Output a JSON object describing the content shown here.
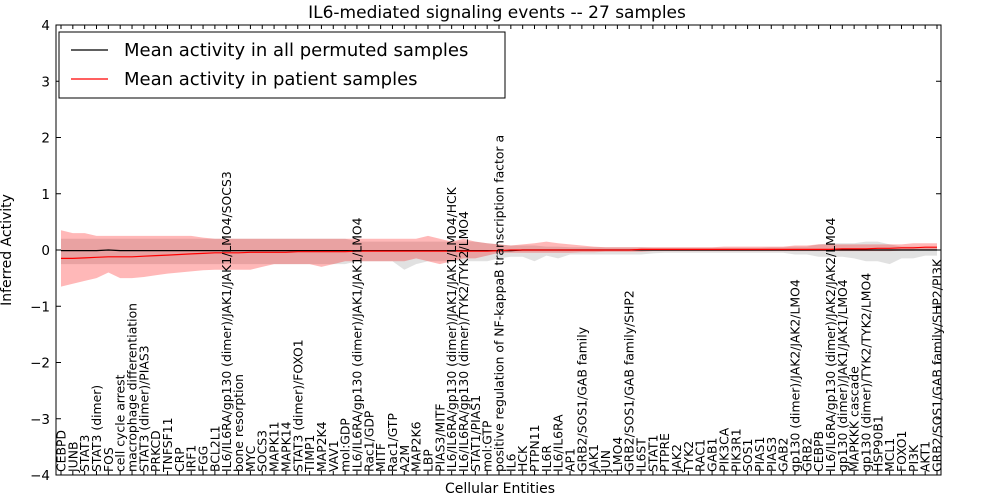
{
  "chart_data": {
    "type": "line",
    "title": "IL6-mediated signaling events -- 27 samples",
    "xlabel": "Cellular Entities",
    "ylabel": "Inferred Activity",
    "ylim": [
      -4,
      4
    ],
    "yticks": [
      -4,
      -3,
      -2,
      -1,
      0,
      1,
      2,
      3,
      4
    ],
    "ytick_labels": [
      "−4",
      "−3",
      "−2",
      "−1",
      "0",
      "1",
      "2",
      "3",
      "4"
    ],
    "legend_position": "top-left",
    "categories": [
      "CEBPD",
      "JUNB",
      "STAT3",
      "STAT3 (dimer)",
      "FOS",
      "cell cycle arrest",
      "macrophage differentiation",
      "STAT3 (dimer)/PIAS3",
      "PRKCD",
      "TNFSF11",
      "CRP",
      "IRF1",
      "FGG",
      "BCL2L1",
      "IL6/IL6RA/gp130 (dimer)/JAK1/JAK1/LMO4/SOCS3",
      "bone resorption",
      "MYC",
      "SOCS3",
      "MAPK11",
      "MAPK14",
      "STAT3 (dimer)/FOXO1",
      "TIMP1",
      "MAP2K4",
      "VAV1",
      "mol:GDP",
      "IL6/IL6RA/gp130 (dimer)/JAK1/JAK1/LMO4",
      "Rac1/GDP",
      "MITF",
      "Rac1/GTP",
      "A2M",
      "MAP2K6",
      "LBP",
      "PIAS3/MITF",
      "IL6/IL6RA/gp130 (dimer)/JAK1/JAK1/LMO4/HCK",
      "IL6/IL6RA/gp130 (dimer)/TYK2/TYK2/LMO4",
      "STAT1/PIAS1",
      "mol:GTP",
      "positive regulation of NF-kappaB transcription factor a",
      "IL6",
      "HCK",
      "PTPN11",
      "IL6R",
      "IL6/IL6RA",
      "AP1",
      "GRB2/SOS1/GAB family",
      "JAK1",
      "JUN",
      "LMO4",
      "GRB2/SOS1/GAB family/SHP2",
      "IL6ST",
      "STAT1",
      "PTPRE",
      "JAK2",
      "TYK2",
      "RAC1",
      "GAB1",
      "PIK3CA",
      "PIK3R1",
      "SOS1",
      "PIAS1",
      "PIAS3",
      "GAB2",
      "gp130 (dimer)/JAK2/JAK2/LMO4",
      "GRB2",
      "CEBPB",
      "IL6/IL6RA/gp130 (dimer)/JAK2/JAK2/LMO4",
      "gp130 (dimer)/JAK1/JAK1/LMO4",
      "MAPKKK cascade",
      "gp130 (dimer)/TYK2/TYK2/LMO4",
      "HSP90B1",
      "MCL1",
      "FOXO1",
      "PI3K",
      "AKT1",
      "GRB2/SOS1/GAB family/SHP2/PI3K"
    ],
    "series": [
      {
        "name": "Mean activity in all permuted samples",
        "color": "#000000",
        "band_color": "#c8c8c8",
        "values": [
          -0.01,
          -0.01,
          -0.01,
          -0.01,
          0.0,
          -0.01,
          -0.01,
          -0.01,
          -0.01,
          -0.01,
          -0.01,
          -0.01,
          -0.01,
          -0.01,
          -0.01,
          -0.01,
          -0.01,
          -0.01,
          -0.01,
          -0.01,
          -0.01,
          -0.01,
          -0.01,
          -0.01,
          -0.01,
          -0.01,
          -0.01,
          -0.01,
          -0.01,
          -0.01,
          -0.01,
          -0.01,
          -0.01,
          -0.01,
          -0.01,
          -0.01,
          -0.01,
          -0.01,
          -0.01,
          0.0,
          0.0,
          0.0,
          0.0,
          0.0,
          0.0,
          0.0,
          0.0,
          0.0,
          0.0,
          0.0,
          0.0,
          0.0,
          0.0,
          0.0,
          0.0,
          0.0,
          0.0,
          0.0,
          0.0,
          0.0,
          0.0,
          0.0,
          0.0,
          0.0,
          0.0,
          0.0,
          0.0,
          0.0,
          0.0,
          0.0,
          0.0,
          0.0,
          0.0,
          0.0,
          0.0
        ],
        "lower": [
          -0.25,
          -0.25,
          -0.25,
          -0.25,
          -0.25,
          -0.25,
          -0.25,
          -0.25,
          -0.25,
          -0.25,
          -0.25,
          -0.25,
          -0.25,
          -0.25,
          -0.25,
          -0.25,
          -0.25,
          -0.25,
          -0.25,
          -0.25,
          -0.25,
          -0.25,
          -0.25,
          -0.25,
          -0.25,
          -0.2,
          -0.2,
          -0.2,
          -0.2,
          -0.35,
          -0.25,
          -0.2,
          -0.2,
          -0.2,
          -0.2,
          -0.2,
          -0.2,
          -0.15,
          -0.12,
          -0.12,
          -0.2,
          -0.1,
          -0.15,
          -0.08,
          -0.08,
          -0.08,
          -0.08,
          -0.08,
          -0.08,
          -0.08,
          -0.06,
          -0.05,
          -0.05,
          -0.05,
          -0.05,
          -0.05,
          -0.05,
          -0.05,
          -0.05,
          -0.05,
          -0.05,
          -0.05,
          -0.08,
          -0.08,
          -0.12,
          -0.12,
          -0.12,
          -0.15,
          -0.2,
          -0.2,
          -0.25,
          -0.15,
          -0.15,
          -0.1,
          -0.1
        ],
        "upper": [
          0.2,
          0.2,
          0.2,
          0.2,
          0.2,
          0.2,
          0.2,
          0.2,
          0.2,
          0.2,
          0.2,
          0.2,
          0.2,
          0.2,
          0.2,
          0.2,
          0.2,
          0.2,
          0.2,
          0.2,
          0.2,
          0.2,
          0.2,
          0.2,
          0.2,
          0.15,
          0.15,
          0.15,
          0.15,
          0.15,
          0.15,
          0.15,
          0.15,
          0.15,
          0.15,
          0.15,
          0.12,
          0.1,
          0.08,
          0.08,
          0.08,
          0.06,
          0.06,
          0.05,
          0.05,
          0.05,
          0.05,
          0.05,
          0.05,
          0.05,
          0.04,
          0.04,
          0.04,
          0.04,
          0.04,
          0.04,
          0.04,
          0.04,
          0.04,
          0.04,
          0.05,
          0.05,
          0.06,
          0.06,
          0.1,
          0.12,
          0.12,
          0.12,
          0.15,
          0.15,
          0.1,
          0.06,
          0.06,
          0.05,
          0.05
        ]
      },
      {
        "name": "Mean activity in patient samples",
        "color": "#ff0000",
        "band_color": "#ff0000",
        "values": [
          -0.15,
          -0.15,
          -0.14,
          -0.13,
          -0.12,
          -0.12,
          -0.12,
          -0.11,
          -0.1,
          -0.09,
          -0.08,
          -0.07,
          -0.06,
          -0.05,
          -0.05,
          -0.05,
          -0.04,
          -0.04,
          -0.04,
          -0.04,
          -0.03,
          -0.03,
          -0.03,
          -0.03,
          -0.03,
          -0.02,
          -0.02,
          -0.02,
          -0.02,
          -0.02,
          -0.02,
          -0.02,
          -0.02,
          -0.02,
          -0.02,
          -0.02,
          -0.02,
          -0.01,
          0.0,
          0.0,
          0.0,
          0.0,
          0.0,
          0.0,
          0.0,
          0.0,
          0.0,
          0.0,
          0.0,
          0.01,
          0.01,
          0.01,
          0.01,
          0.01,
          0.01,
          0.01,
          0.01,
          0.01,
          0.01,
          0.01,
          0.01,
          0.01,
          0.01,
          0.01,
          0.01,
          0.01,
          0.02,
          0.02,
          0.02,
          0.03,
          0.03,
          0.04,
          0.04,
          0.05,
          0.05
        ],
        "lower": [
          -0.65,
          -0.6,
          -0.55,
          -0.5,
          -0.4,
          -0.5,
          -0.5,
          -0.48,
          -0.45,
          -0.42,
          -0.4,
          -0.38,
          -0.36,
          -0.35,
          -0.35,
          -0.35,
          -0.35,
          -0.3,
          -0.25,
          -0.25,
          -0.25,
          -0.25,
          -0.3,
          -0.25,
          -0.2,
          -0.2,
          -0.2,
          -0.2,
          -0.2,
          -0.2,
          -0.15,
          -0.2,
          -0.25,
          -0.2,
          -0.15,
          -0.15,
          -0.1,
          -0.05,
          -0.05,
          -0.05,
          -0.05,
          -0.05,
          -0.05,
          -0.05,
          -0.04,
          -0.04,
          -0.03,
          -0.03,
          -0.03,
          -0.03,
          -0.02,
          -0.02,
          -0.02,
          -0.02,
          -0.02,
          -0.02,
          -0.02,
          -0.02,
          -0.02,
          -0.02,
          -0.02,
          -0.02,
          -0.02,
          -0.02,
          -0.02,
          -0.02,
          -0.02,
          -0.02,
          -0.02,
          -0.02,
          -0.02,
          -0.01,
          -0.01,
          0.0,
          0.0
        ],
        "upper": [
          0.35,
          0.3,
          0.3,
          0.25,
          0.25,
          0.25,
          0.25,
          0.25,
          0.25,
          0.25,
          0.25,
          0.25,
          0.22,
          0.2,
          0.2,
          0.2,
          0.2,
          0.2,
          0.2,
          0.2,
          0.2,
          0.2,
          0.2,
          0.2,
          0.2,
          0.2,
          0.2,
          0.2,
          0.2,
          0.2,
          0.2,
          0.25,
          0.2,
          0.15,
          0.2,
          0.15,
          0.12,
          0.1,
          0.08,
          0.1,
          0.12,
          0.15,
          0.12,
          0.1,
          0.08,
          0.06,
          0.05,
          0.05,
          0.05,
          0.05,
          0.05,
          0.05,
          0.05,
          0.05,
          0.05,
          0.05,
          0.06,
          0.06,
          0.06,
          0.06,
          0.06,
          0.06,
          0.08,
          0.08,
          0.1,
          0.1,
          0.1,
          0.1,
          0.1,
          0.1,
          0.1,
          0.1,
          0.12,
          0.12,
          0.12
        ]
      }
    ]
  }
}
